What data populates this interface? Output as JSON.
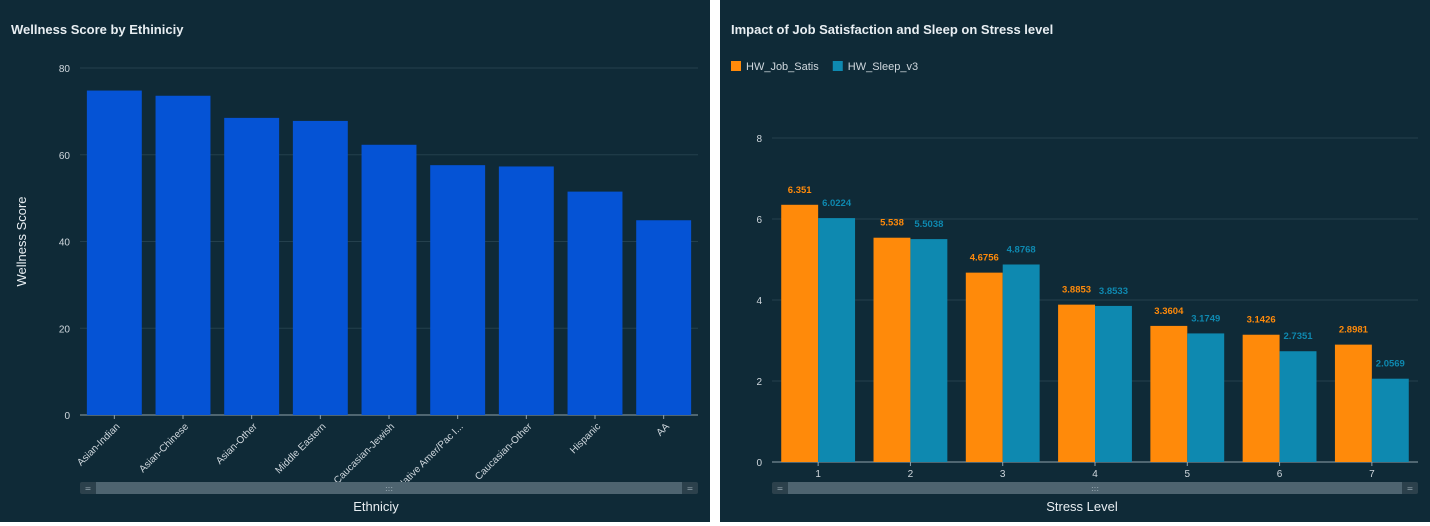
{
  "chart_data": [
    {
      "type": "bar",
      "title": "Wellness Score by Ethiniciy",
      "xlabel": "Ethniciy",
      "ylabel": "Wellness Score",
      "categories": [
        "Asian-Indian",
        "Asian-Chinese",
        "Asian-Other",
        "Middle Eastern",
        "Caucasian-Jewish",
        "Native Amer/Pac I...",
        "Caucasian-Other",
        "Hispanic",
        "AA"
      ],
      "values": [
        74.8,
        73.6,
        68.5,
        67.8,
        62.3,
        57.6,
        57.3,
        51.5,
        44.9
      ],
      "ylim": [
        0,
        80
      ],
      "yticks": [
        0,
        20,
        40,
        60,
        80
      ],
      "color": "#0553d5",
      "grid": true
    },
    {
      "type": "bar",
      "title": "Impact of Job Satisfaction and Sleep on Stress level",
      "xlabel": "Stress Level",
      "ylabel": "",
      "categories": [
        "1",
        "2",
        "3",
        "4",
        "5",
        "6",
        "7"
      ],
      "series": [
        {
          "name": "HW_Job_Satis",
          "color": "#ff8a0a",
          "values": [
            6.351,
            5.538,
            4.6756,
            3.8853,
            3.3604,
            3.1426,
            2.8981
          ],
          "labels": [
            "6.351",
            "5.538",
            "4.6756",
            "3.8853",
            "3.3604",
            "3.1426",
            "2.8981"
          ]
        },
        {
          "name": "HW_Sleep_v3",
          "color": "#0e89b0",
          "values": [
            6.0224,
            5.5038,
            4.8768,
            3.8533,
            3.1749,
            2.7351,
            2.0569
          ],
          "labels": [
            "6.0224",
            "5.5038",
            "4.8768",
            "3.8533",
            "3.1749",
            "2.7351",
            "2.0569"
          ]
        }
      ],
      "ylim": [
        0,
        8
      ],
      "yticks": [
        0,
        2,
        4,
        6,
        8
      ],
      "legend": "top-left",
      "grid": true
    }
  ]
}
